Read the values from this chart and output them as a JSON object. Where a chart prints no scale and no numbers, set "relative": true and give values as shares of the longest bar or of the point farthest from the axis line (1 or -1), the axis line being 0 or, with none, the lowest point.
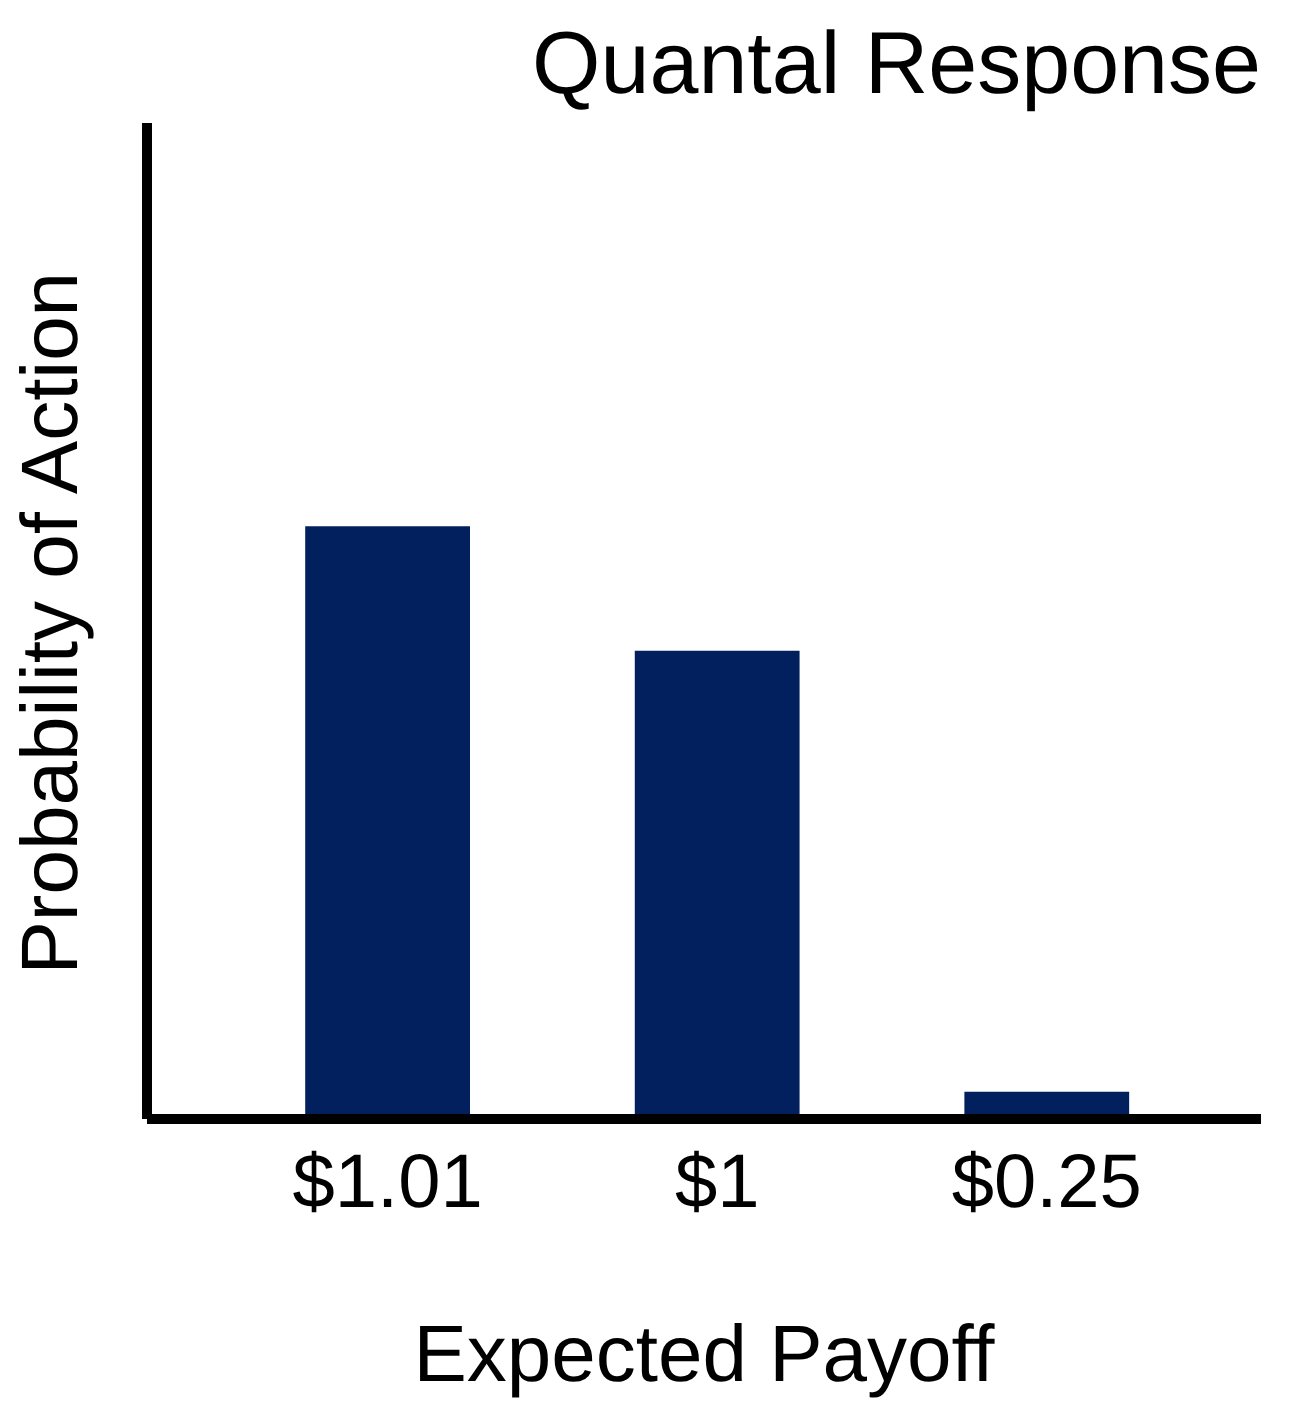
{
  "chart_data": {
    "type": "bar",
    "title": "Quantal Response",
    "xlabel": "Expected Payoff",
    "ylabel": "Probability of Action",
    "categories": [
      "$1.01",
      "$1",
      "$0.25"
    ],
    "values": [
      1,
      0.79,
      0.046
    ],
    "color": "#03205e",
    "relative": true,
    "grid": false
  }
}
